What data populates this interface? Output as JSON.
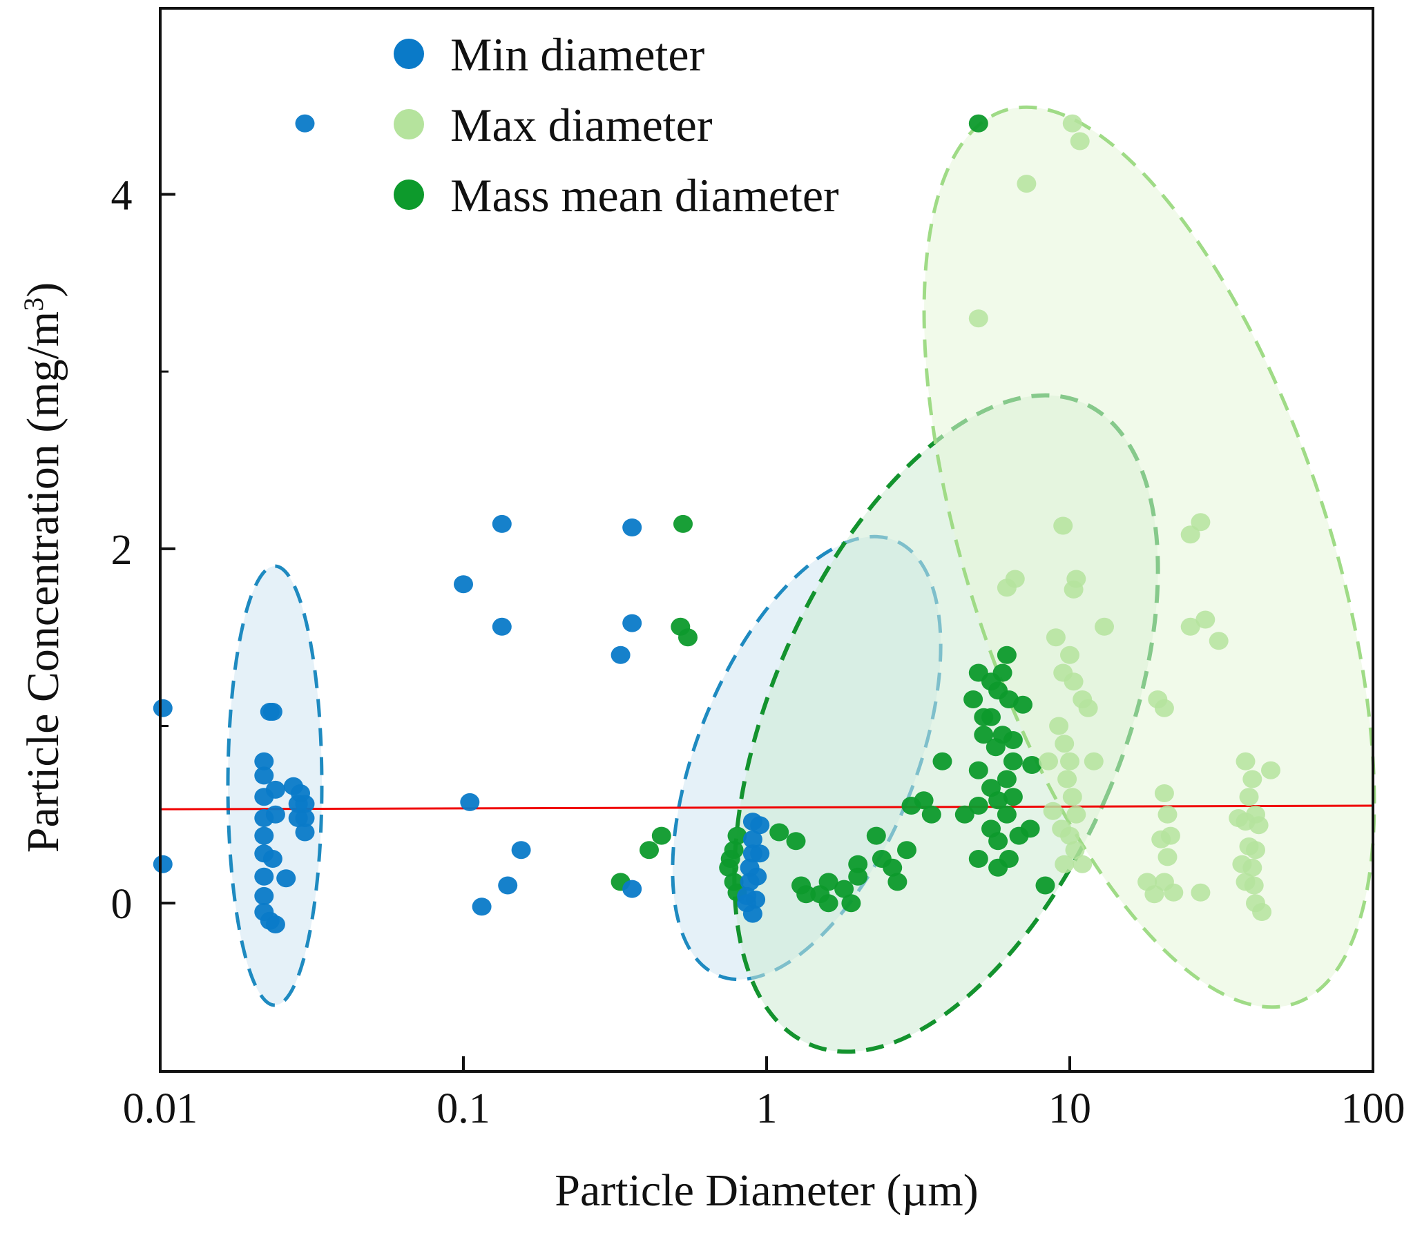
{
  "chart_data": {
    "type": "scatter",
    "title": "",
    "xlabel": "Particle Diameter (µm)",
    "ylabel_main": "Particle Concentration (mg/m",
    "ylabel_sup": "3",
    "ylabel_close": ")",
    "xscale": "log",
    "xlim": [
      0.01,
      100
    ],
    "ylim": [
      -0.95,
      5.05
    ],
    "x_ticks": [
      0.01,
      0.1,
      1,
      10,
      100
    ],
    "x_tick_labels": [
      "0.01",
      "0.1",
      "1",
      "10",
      "100"
    ],
    "y_ticks": [
      0,
      2,
      4
    ],
    "y_tick_labels": [
      "0",
      "2",
      "4"
    ],
    "y_minor_ticks": [
      1,
      3
    ],
    "legend_position": "top-center",
    "colors": {
      "min": "#0a7ac8",
      "max": "#b5e39d",
      "mass": "#0d9a2c",
      "reference_line": "#f00000",
      "min_ellipse_fill": "#cfe6f3",
      "min_ellipse_stroke": "#1e8ac0",
      "mass_ellipse_fill": "#cdebd3",
      "mass_ellipse_stroke": "#13932e",
      "max_ellipse_fill": "#e6f5d9",
      "max_ellipse_stroke": "#9fdb86"
    },
    "reference_line": {
      "x": [
        0.01,
        100
      ],
      "y": [
        0.53,
        0.55
      ]
    },
    "series": [
      {
        "name": "Min diameter",
        "color": "#0a7ac8",
        "points": [
          [
            0.03,
            4.4
          ],
          [
            0.0102,
            1.1
          ],
          [
            0.0102,
            0.22
          ],
          [
            0.023,
            1.08
          ],
          [
            0.0235,
            1.08
          ],
          [
            0.022,
            0.8
          ],
          [
            0.022,
            0.72
          ],
          [
            0.022,
            0.6
          ],
          [
            0.022,
            0.48
          ],
          [
            0.022,
            0.38
          ],
          [
            0.022,
            0.28
          ],
          [
            0.022,
            0.15
          ],
          [
            0.022,
            0.04
          ],
          [
            0.022,
            -0.05
          ],
          [
            0.023,
            -0.1
          ],
          [
            0.024,
            -0.12
          ],
          [
            0.0235,
            0.25
          ],
          [
            0.024,
            0.5
          ],
          [
            0.024,
            0.64
          ],
          [
            0.026,
            0.14
          ],
          [
            0.0275,
            0.66
          ],
          [
            0.029,
            0.62
          ],
          [
            0.03,
            0.56
          ],
          [
            0.03,
            0.48
          ],
          [
            0.03,
            0.4
          ],
          [
            0.0285,
            0.48
          ],
          [
            0.0285,
            0.56
          ],
          [
            0.1,
            1.8
          ],
          [
            0.134,
            2.14
          ],
          [
            0.134,
            1.56
          ],
          [
            0.33,
            1.4
          ],
          [
            0.36,
            2.12
          ],
          [
            0.36,
            1.58
          ],
          [
            0.105,
            0.57
          ],
          [
            0.115,
            -0.02
          ],
          [
            0.14,
            0.1
          ],
          [
            0.155,
            0.3
          ],
          [
            0.36,
            0.08
          ],
          [
            0.9,
            0.46
          ],
          [
            0.9,
            0.36
          ],
          [
            0.9,
            0.28
          ],
          [
            0.88,
            0.2
          ],
          [
            0.88,
            0.12
          ],
          [
            0.86,
            0.04
          ],
          [
            0.86,
            0.0
          ],
          [
            0.92,
            0.02
          ],
          [
            0.9,
            -0.06
          ],
          [
            0.95,
            0.44
          ],
          [
            0.95,
            0.28
          ],
          [
            0.93,
            0.15
          ]
        ]
      },
      {
        "name": "Max diameter",
        "color": "#b5e39d",
        "points": [
          [
            10.2,
            4.4
          ],
          [
            10.8,
            4.3
          ],
          [
            7.2,
            4.06
          ],
          [
            5.0,
            3.3
          ],
          [
            9.5,
            2.13
          ],
          [
            10.5,
            1.83
          ],
          [
            10.3,
            1.77
          ],
          [
            6.6,
            1.83
          ],
          [
            6.2,
            1.78
          ],
          [
            13.0,
            1.56
          ],
          [
            27.0,
            2.15
          ],
          [
            25.0,
            2.08
          ],
          [
            25.0,
            1.56
          ],
          [
            28.0,
            1.6
          ],
          [
            31.0,
            1.48
          ],
          [
            9.0,
            1.5
          ],
          [
            9.5,
            1.3
          ],
          [
            10.0,
            1.4
          ],
          [
            10.3,
            1.25
          ],
          [
            11.0,
            1.15
          ],
          [
            11.5,
            1.1
          ],
          [
            9.2,
            1.0
          ],
          [
            9.6,
            0.9
          ],
          [
            10.0,
            0.8
          ],
          [
            9.8,
            0.7
          ],
          [
            10.2,
            0.6
          ],
          [
            10.5,
            0.5
          ],
          [
            9.4,
            0.42
          ],
          [
            10.0,
            0.38
          ],
          [
            10.4,
            0.3
          ],
          [
            9.6,
            0.22
          ],
          [
            11.0,
            0.22
          ],
          [
            12.0,
            0.8
          ],
          [
            8.5,
            0.8
          ],
          [
            8.8,
            0.52
          ],
          [
            19.5,
            1.15
          ],
          [
            20.5,
            1.1
          ],
          [
            20.5,
            0.62
          ],
          [
            21.0,
            0.5
          ],
          [
            20.0,
            0.36
          ],
          [
            21.0,
            0.26
          ],
          [
            20.5,
            0.12
          ],
          [
            22.0,
            0.06
          ],
          [
            18.0,
            0.12
          ],
          [
            19.0,
            0.05
          ],
          [
            21.5,
            0.38
          ],
          [
            27.0,
            0.06
          ],
          [
            38.0,
            0.8
          ],
          [
            40.0,
            0.7
          ],
          [
            46.0,
            0.75
          ],
          [
            39.0,
            0.6
          ],
          [
            41.0,
            0.5
          ],
          [
            38.0,
            0.46
          ],
          [
            42.0,
            0.44
          ],
          [
            39.0,
            0.32
          ],
          [
            41.0,
            0.3
          ],
          [
            40.0,
            0.2
          ],
          [
            40.5,
            0.1
          ],
          [
            41.0,
            0.0
          ],
          [
            43.0,
            -0.05
          ],
          [
            36.0,
            0.48
          ],
          [
            37.0,
            0.22
          ],
          [
            38.0,
            0.12
          ]
        ]
      },
      {
        "name": "Mass mean diameter",
        "color": "#0d9a2c",
        "points": [
          [
            5.0,
            4.4
          ],
          [
            0.53,
            2.14
          ],
          [
            0.52,
            1.56
          ],
          [
            0.55,
            1.5
          ],
          [
            0.45,
            0.38
          ],
          [
            0.41,
            0.3
          ],
          [
            0.33,
            0.12
          ],
          [
            0.8,
            0.38
          ],
          [
            0.78,
            0.3
          ],
          [
            0.76,
            0.25
          ],
          [
            0.75,
            0.2
          ],
          [
            0.78,
            0.12
          ],
          [
            0.8,
            0.06
          ],
          [
            1.1,
            0.4
          ],
          [
            1.25,
            0.35
          ],
          [
            1.3,
            0.1
          ],
          [
            1.35,
            0.05
          ],
          [
            1.5,
            0.05
          ],
          [
            1.6,
            0.0
          ],
          [
            1.6,
            0.12
          ],
          [
            1.8,
            0.08
          ],
          [
            1.9,
            0.0
          ],
          [
            2.0,
            0.22
          ],
          [
            2.0,
            0.15
          ],
          [
            2.3,
            0.38
          ],
          [
            2.4,
            0.25
          ],
          [
            2.6,
            0.2
          ],
          [
            2.7,
            0.12
          ],
          [
            2.9,
            0.3
          ],
          [
            3.0,
            0.55
          ],
          [
            3.3,
            0.58
          ],
          [
            3.5,
            0.5
          ],
          [
            3.8,
            0.8
          ],
          [
            5.0,
            1.3
          ],
          [
            5.5,
            1.25
          ],
          [
            5.8,
            1.2
          ],
          [
            6.0,
            1.3
          ],
          [
            6.2,
            1.4
          ],
          [
            6.3,
            1.15
          ],
          [
            4.8,
            1.15
          ],
          [
            5.5,
            1.05
          ],
          [
            6.0,
            0.95
          ],
          [
            5.7,
            0.88
          ],
          [
            6.5,
            0.92
          ],
          [
            6.5,
            0.8
          ],
          [
            6.2,
            0.7
          ],
          [
            5.0,
            0.75
          ],
          [
            5.5,
            0.65
          ],
          [
            5.8,
            0.58
          ],
          [
            6.2,
            0.5
          ],
          [
            5.0,
            0.55
          ],
          [
            5.5,
            0.42
          ],
          [
            5.8,
            0.35
          ],
          [
            6.3,
            0.25
          ],
          [
            5.0,
            0.25
          ],
          [
            5.8,
            0.2
          ],
          [
            6.5,
            0.6
          ],
          [
            4.5,
            0.5
          ],
          [
            6.8,
            0.38
          ],
          [
            7.5,
            0.78
          ],
          [
            7.4,
            0.42
          ],
          [
            7.0,
            1.12
          ],
          [
            5.2,
            0.95
          ],
          [
            5.2,
            1.05
          ],
          [
            8.3,
            0.1
          ]
        ]
      }
    ],
    "regions": [
      {
        "name": "Min diameter (0.01–0.1)",
        "series": "Min diameter",
        "center": [
          0.024,
          0.5
        ],
        "ellipse": "min-low"
      },
      {
        "name": "Min diameter (~1)",
        "series": "Min diameter",
        "center": [
          1.2,
          0.8
        ],
        "ellipse": "min-high"
      },
      {
        "name": "Mass mean diameter",
        "series": "Mass mean diameter",
        "center": [
          2.6,
          0.85
        ],
        "ellipse": "mass"
      },
      {
        "name": "Max diameter",
        "series": "Max diameter",
        "center": [
          14.0,
          1.75
        ],
        "ellipse": "max"
      }
    ]
  }
}
